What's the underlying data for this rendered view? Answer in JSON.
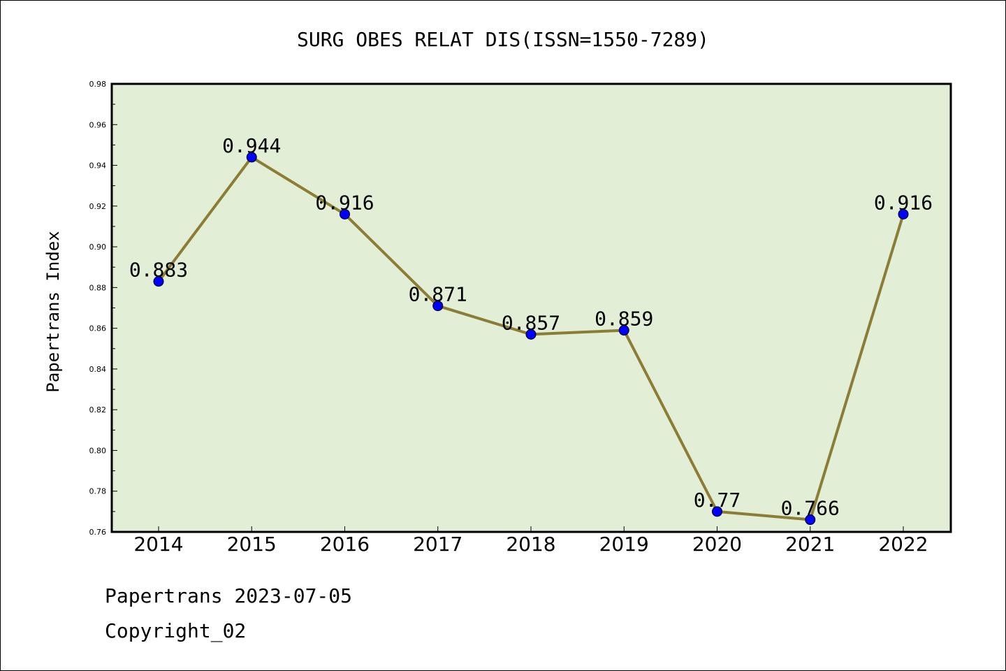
{
  "chart_data": {
    "type": "line",
    "title": "SURG OBES RELAT DIS(ISSN=1550-7289)",
    "xlabel": "",
    "ylabel": "Papertrans Index",
    "categories": [
      "2014",
      "2015",
      "2016",
      "2017",
      "2018",
      "2019",
      "2020",
      "2021",
      "2022"
    ],
    "series": [
      {
        "values": [
          0.883,
          0.944,
          0.916,
          0.871,
          0.857,
          0.859,
          0.77,
          0.766,
          0.916
        ],
        "labels": [
          "0.883",
          "0.944",
          "0.916",
          "0.871",
          "0.857",
          "0.859",
          "0.77",
          "0.766",
          "0.916"
        ]
      }
    ],
    "ylim": [
      0.76,
      0.98
    ],
    "yticks": [
      "0.76",
      "0.78",
      "0.80",
      "0.82",
      "0.84",
      "0.86",
      "0.88",
      "0.90",
      "0.92",
      "0.94",
      "0.96",
      "0.98"
    ],
    "grid": false,
    "colors": {
      "plot_background": "#e2efd6",
      "line": "#8b7d35",
      "marker": "#0000ff"
    }
  },
  "footer": {
    "date_text": "Papertrans 2023-07-05",
    "copyright_text": "Copyright_02"
  }
}
